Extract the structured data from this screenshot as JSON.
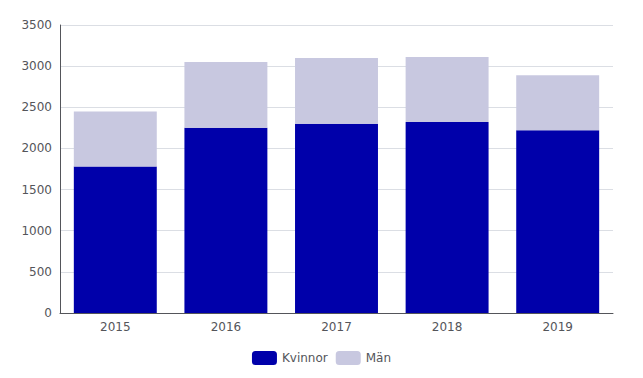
{
  "chart_data": {
    "type": "bar",
    "stacked": true,
    "categories": [
      "2015",
      "2016",
      "2017",
      "2018",
      "2019"
    ],
    "series": [
      {
        "name": "Kvinnor",
        "color": "#0000AA",
        "values": [
          1780,
          2250,
          2300,
          2320,
          2220
        ]
      },
      {
        "name": "Män",
        "color": "#C8C8E0",
        "values": [
          670,
          800,
          800,
          790,
          670
        ]
      }
    ],
    "ylim": [
      0,
      3500
    ],
    "yticks": [
      0,
      500,
      1000,
      1500,
      2000,
      2500,
      3000,
      3500
    ],
    "grid": true,
    "legend": "bottom"
  }
}
